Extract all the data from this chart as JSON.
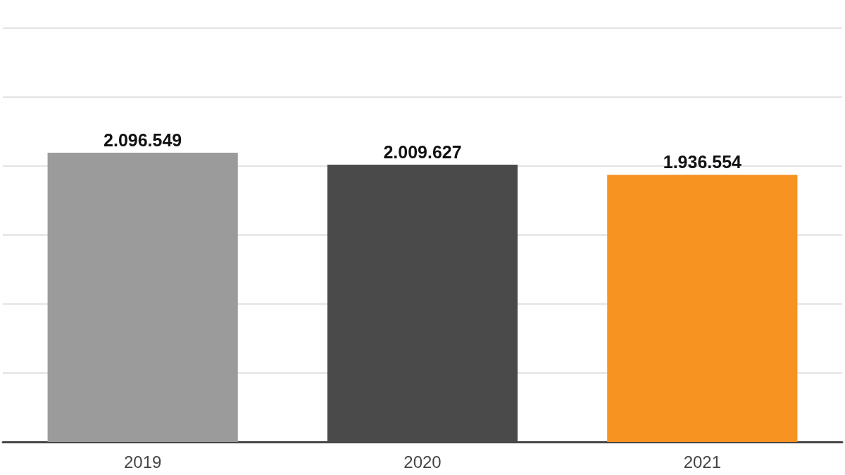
{
  "chart_data": {
    "type": "bar",
    "categories": [
      "2019",
      "2020",
      "2021"
    ],
    "values": [
      2096549,
      2009627,
      1936554
    ],
    "colors": [
      "#9b9b9b",
      "#4a4a4a",
      "#f69321"
    ],
    "value_labels": [
      "2.096.549",
      "2.009.627",
      "1.936.554"
    ],
    "ylim": [
      0,
      3000000
    ],
    "yticks": [
      {
        "value": 0,
        "label": null
      },
      {
        "value": 500000,
        "label": null
      },
      {
        "value": 1000000,
        "label": null
      },
      {
        "value": 1500000,
        "label": null
      },
      {
        "value": 2000000,
        "label": null
      },
      {
        "value": 2500000,
        "label": null
      },
      {
        "value": 3000000,
        "label": null
      }
    ],
    "grid": "y",
    "tick_labels": "x"
  }
}
